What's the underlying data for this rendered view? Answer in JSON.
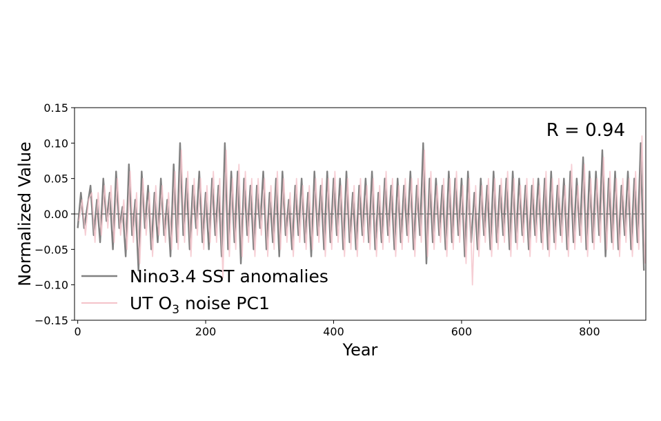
{
  "chart_data": {
    "type": "line",
    "title": "",
    "xlabel": "Year",
    "ylabel": "Normalized Value",
    "xlim": [
      -5,
      888
    ],
    "ylim": [
      -0.15,
      0.15
    ],
    "xticks": [
      0,
      200,
      400,
      600,
      800
    ],
    "xtick_labels": [
      "0",
      "200",
      "400",
      "600",
      "800"
    ],
    "yticks": [
      -0.15,
      -0.1,
      -0.05,
      0.0,
      0.05,
      0.1,
      0.15
    ],
    "ytick_labels": [
      "−0.15",
      "−0.10",
      "−0.05",
      "0.00",
      "0.05",
      "0.10",
      "0.15"
    ],
    "grid": false,
    "zero_line": {
      "y": 0,
      "style": "dashed",
      "color": "#777777"
    },
    "annotation": "R = 0.94",
    "legend": {
      "placement": "lower-left",
      "entries": [
        {
          "series": 0,
          "prefix": "Nino3.4 SST anomalies",
          "sub": "",
          "suffix": ""
        },
        {
          "series": 1,
          "prefix": "UT O",
          "sub": "3",
          "suffix": " noise PC1"
        }
      ]
    },
    "series": [
      {
        "name": "Nino3.4 SST anomalies",
        "color": "#808080",
        "x_start": 0,
        "x_step": 5,
        "values": [
          -0.02,
          0.03,
          -0.02,
          0.01,
          0.04,
          -0.03,
          0.02,
          -0.04,
          0.05,
          -0.01,
          0.03,
          -0.05,
          0.06,
          -0.02,
          0.01,
          -0.06,
          0.07,
          -0.03,
          0.02,
          -0.08,
          0.06,
          -0.02,
          0.04,
          -0.05,
          0.03,
          -0.04,
          0.05,
          -0.03,
          0.02,
          -0.06,
          0.07,
          -0.04,
          0.1,
          -0.03,
          0.05,
          -0.05,
          0.04,
          -0.02,
          0.06,
          -0.04,
          0.03,
          -0.05,
          0.05,
          -0.03,
          0.04,
          -0.06,
          0.1,
          -0.05,
          0.06,
          -0.04,
          0.06,
          -0.07,
          0.05,
          -0.03,
          0.04,
          -0.05,
          0.04,
          -0.02,
          0.06,
          -0.05,
          0.03,
          -0.04,
          0.05,
          -0.06,
          0.06,
          -0.03,
          0.02,
          -0.05,
          0.04,
          -0.03,
          0.05,
          -0.04,
          0.03,
          -0.06,
          0.06,
          -0.03,
          0.04,
          -0.05,
          0.06,
          -0.04,
          0.05,
          -0.03,
          0.05,
          -0.05,
          0.06,
          -0.04,
          0.03,
          -0.05,
          0.04,
          -0.03,
          0.05,
          -0.04,
          0.06,
          -0.05,
          0.03,
          -0.04,
          0.05,
          -0.03,
          0.04,
          -0.05,
          0.05,
          -0.04,
          0.04,
          -0.03,
          0.06,
          -0.05,
          0.04,
          -0.03,
          0.1,
          -0.07,
          0.05,
          -0.04,
          0.05,
          -0.03,
          0.04,
          -0.05,
          0.06,
          -0.04,
          0.05,
          -0.03,
          0.05,
          -0.06,
          0.06,
          -0.04,
          0.03,
          -0.05,
          0.05,
          -0.03,
          0.04,
          -0.05,
          0.06,
          -0.04,
          0.04,
          -0.03,
          0.05,
          -0.05,
          0.06,
          -0.04,
          0.05,
          -0.03,
          0.04,
          -0.05,
          0.04,
          -0.03,
          0.05,
          -0.04,
          0.05,
          -0.05,
          0.06,
          -0.04,
          0.04,
          -0.03,
          0.05,
          -0.05,
          0.06,
          -0.04,
          0.05,
          -0.03,
          0.08,
          -0.05,
          0.06,
          -0.04,
          0.06,
          -0.03,
          0.09,
          -0.06,
          0.05,
          -0.04,
          0.06,
          -0.05,
          0.04,
          -0.03,
          0.06,
          -0.05,
          0.05,
          -0.04,
          0.1,
          -0.08
        ]
      },
      {
        "name": "UT O3 noise PC1",
        "color": "#f4c2c9",
        "x_start": 2,
        "x_step": 5,
        "values": [
          -0.01,
          0.02,
          -0.03,
          0.02,
          0.03,
          -0.04,
          0.03,
          -0.03,
          0.04,
          -0.02,
          0.04,
          -0.04,
          0.05,
          -0.03,
          0.02,
          -0.05,
          0.06,
          -0.04,
          0.03,
          -0.07,
          0.05,
          -0.03,
          0.03,
          -0.06,
          0.04,
          -0.03,
          0.04,
          -0.04,
          0.03,
          -0.05,
          0.06,
          -0.05,
          0.09,
          -0.04,
          0.06,
          -0.06,
          0.05,
          -0.03,
          0.05,
          -0.05,
          0.04,
          -0.04,
          0.06,
          -0.04,
          0.05,
          -0.09,
          0.09,
          -0.06,
          0.05,
          -0.05,
          0.07,
          -0.06,
          0.06,
          -0.04,
          0.05,
          -0.06,
          0.05,
          -0.03,
          0.05,
          -0.06,
          0.04,
          -0.05,
          0.06,
          -0.05,
          0.05,
          -0.04,
          0.03,
          -0.06,
          0.05,
          -0.04,
          0.04,
          -0.05,
          0.04,
          -0.05,
          0.05,
          -0.04,
          0.05,
          -0.06,
          0.05,
          -0.05,
          0.06,
          -0.04,
          0.04,
          -0.06,
          0.05,
          -0.05,
          0.04,
          -0.06,
          0.05,
          -0.04,
          0.04,
          -0.05,
          0.05,
          -0.06,
          0.04,
          -0.05,
          0.06,
          -0.04,
          0.05,
          -0.06,
          0.04,
          -0.05,
          0.05,
          -0.04,
          0.05,
          -0.06,
          0.05,
          -0.04,
          0.09,
          -0.06,
          0.06,
          -0.05,
          0.04,
          -0.04,
          0.05,
          -0.06,
          0.05,
          -0.05,
          0.06,
          -0.04,
          0.04,
          -0.07,
          0.05,
          -0.1,
          0.04,
          -0.06,
          0.04,
          -0.04,
          0.05,
          -0.06,
          0.05,
          -0.05,
          0.05,
          -0.04,
          0.06,
          -0.06,
          0.05,
          -0.05,
          0.04,
          -0.04,
          0.05,
          -0.06,
          0.05,
          -0.04,
          0.04,
          -0.05,
          0.06,
          -0.06,
          0.05,
          -0.05,
          0.05,
          -0.04,
          0.04,
          -0.06,
          0.07,
          -0.05,
          0.04,
          -0.04,
          0.07,
          -0.06,
          0.05,
          -0.05,
          0.05,
          -0.04,
          0.08,
          -0.05,
          0.06,
          -0.05,
          0.05,
          -0.06,
          0.05,
          -0.04,
          0.05,
          -0.06,
          0.06,
          -0.05,
          0.11,
          -0.07
        ]
      }
    ]
  }
}
